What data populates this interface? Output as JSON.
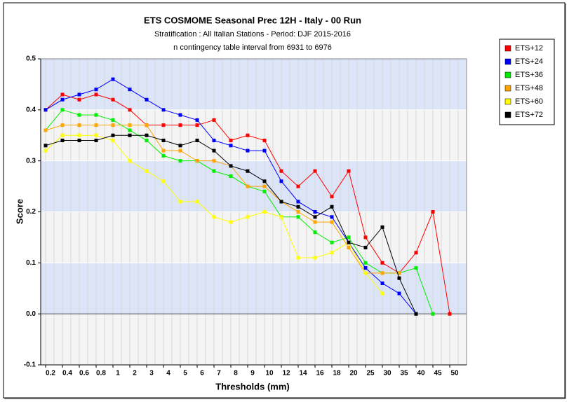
{
  "chart_data": {
    "type": "line",
    "title": "ETS  COSMOME Seasonal Prec 12H - Italy - 00 Run",
    "subtitle": "Stratification : All Italian Stations - Period: DJF 2015-2016",
    "subtitle2": "n contingency table interval from 6931 to 6976",
    "xlabel": "Thresholds (mm)",
    "ylabel": "Score",
    "categories": [
      "0.2",
      "0.4",
      "0.6",
      "0.8",
      "1",
      "2",
      "3",
      "4",
      "5",
      "6",
      "7",
      "8",
      "9",
      "10",
      "12",
      "14",
      "16",
      "18",
      "20",
      "25",
      "30",
      "35",
      "40",
      "45",
      "50"
    ],
    "ylim": [
      -0.1,
      0.5
    ],
    "yticks": [
      {
        "value": -0.1,
        "label": "-0.1"
      },
      {
        "value": 0,
        "label": "0.0"
      },
      0.1,
      0.2,
      0.3,
      0.4,
      0.5
    ],
    "grid": true,
    "legend": "upper right",
    "series": [
      {
        "name": "ETS+12",
        "color": "#ff0000",
        "values": [
          0.4,
          0.43,
          0.42,
          0.43,
          0.42,
          0.4,
          0.37,
          0.37,
          0.37,
          0.37,
          0.38,
          0.34,
          0.35,
          0.34,
          0.28,
          0.25,
          0.28,
          0.23,
          0.28,
          0.15,
          0.1,
          0.08,
          0.12,
          0.2,
          0.0
        ]
      },
      {
        "name": "ETS+24",
        "color": "#0000ff",
        "values": [
          0.4,
          0.42,
          0.43,
          0.44,
          0.46,
          0.44,
          0.42,
          0.4,
          0.39,
          0.38,
          0.34,
          0.33,
          0.32,
          0.32,
          0.26,
          0.22,
          0.2,
          0.19,
          0.14,
          0.09,
          0.06,
          0.04,
          0.0,
          null,
          null
        ]
      },
      {
        "name": "ETS+36",
        "color": "#00ee00",
        "values": [
          0.36,
          0.4,
          0.39,
          0.39,
          0.38,
          0.36,
          0.34,
          0.31,
          0.3,
          0.3,
          0.28,
          0.27,
          0.25,
          0.24,
          0.19,
          0.19,
          0.16,
          0.14,
          0.15,
          0.1,
          0.08,
          0.08,
          0.09,
          0.0,
          null
        ]
      },
      {
        "name": "ETS+48",
        "color": "#ffa500",
        "values": [
          0.36,
          0.37,
          0.37,
          0.37,
          0.37,
          0.37,
          0.37,
          0.32,
          0.32,
          0.3,
          0.3,
          0.29,
          0.25,
          0.25,
          0.22,
          0.2,
          0.18,
          0.18,
          0.13,
          0.08,
          0.08,
          0.08,
          null,
          null,
          null
        ]
      },
      {
        "name": "ETS+60",
        "color": "#ffff00",
        "values": [
          0.32,
          0.35,
          0.35,
          0.35,
          0.34,
          0.3,
          0.28,
          0.26,
          0.22,
          0.22,
          0.19,
          0.18,
          0.19,
          0.2,
          0.19,
          0.11,
          0.11,
          0.12,
          0.14,
          0.08,
          0.04,
          null,
          null,
          null,
          null
        ]
      },
      {
        "name": "ETS+72",
        "color": "#000000",
        "values": [
          0.33,
          0.34,
          0.34,
          0.34,
          0.35,
          0.35,
          0.35,
          0.34,
          0.33,
          0.34,
          0.32,
          0.29,
          0.28,
          0.26,
          0.22,
          0.21,
          0.19,
          0.21,
          0.14,
          0.13,
          0.17,
          0.07,
          0.0,
          null,
          null
        ]
      }
    ]
  }
}
